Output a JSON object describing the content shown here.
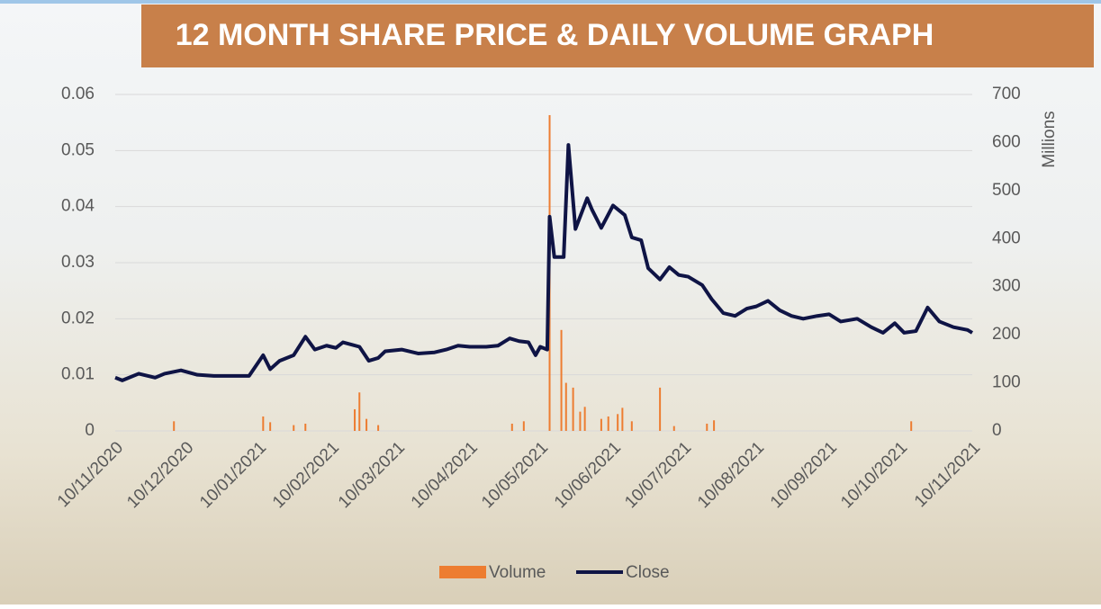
{
  "chart_data": {
    "type": "bar-line",
    "title": "12 MONTH SHARE PRICE & DAILY VOLUME GRAPH",
    "y2label": "Millions",
    "xlim": [
      "10/11/2020",
      "10/11/2021"
    ],
    "xticks": [
      "10/11/2020",
      "10/12/2020",
      "10/01/2021",
      "10/02/2021",
      "10/03/2021",
      "10/04/2021",
      "10/05/2021",
      "10/06/2021",
      "10/07/2021",
      "10/08/2021",
      "10/09/2021",
      "10/10/2021",
      "10/11/2021"
    ],
    "ylim": [
      0,
      0.06
    ],
    "yticks": [
      0,
      0.01,
      0.02,
      0.03,
      0.04,
      0.05,
      0.06
    ],
    "y2lim": [
      0,
      700
    ],
    "y2ticks": [
      0,
      100,
      200,
      300,
      400,
      500,
      600,
      700
    ],
    "grid": true,
    "legend": "bottom",
    "series": [
      {
        "name": "Volume",
        "type": "bar",
        "axis": "y2",
        "color": "#ed7d31",
        "x": [
          "05/12/2020",
          "12/01/2021",
          "15/01/2021",
          "25/01/2021",
          "30/01/2021",
          "20/02/2021",
          "22/02/2021",
          "25/02/2021",
          "02/03/2021",
          "28/04/2021",
          "03/05/2021",
          "14/05/2021",
          "19/05/2021",
          "21/05/2021",
          "24/05/2021",
          "27/05/2021",
          "29/05/2021",
          "05/06/2021",
          "08/06/2021",
          "12/06/2021",
          "14/06/2021",
          "18/06/2021",
          "30/06/2021",
          "06/07/2021",
          "20/07/2021",
          "23/07/2021",
          "15/10/2021"
        ],
        "values": [
          20,
          30,
          18,
          12,
          15,
          45,
          80,
          25,
          12,
          15,
          20,
          657,
          210,
          100,
          90,
          40,
          50,
          25,
          30,
          35,
          48,
          20,
          90,
          10,
          15,
          22,
          20
        ]
      },
      {
        "name": "Close",
        "type": "line",
        "axis": "y",
        "color": "#0f1445",
        "x": [
          "10/11/2020",
          "13/11/2020",
          "20/11/2020",
          "27/11/2020",
          "01/12/2020",
          "08/12/2020",
          "15/12/2020",
          "22/12/2020",
          "30/12/2020",
          "06/01/2021",
          "12/01/2021",
          "15/01/2021",
          "19/01/2021",
          "25/01/2021",
          "30/01/2021",
          "03/02/2021",
          "08/02/2021",
          "12/02/2021",
          "15/02/2021",
          "22/02/2021",
          "26/02/2021",
          "02/03/2021",
          "05/03/2021",
          "12/03/2021",
          "19/03/2021",
          "26/03/2021",
          "31/03/2021",
          "05/04/2021",
          "10/04/2021",
          "17/04/2021",
          "22/04/2021",
          "27/04/2021",
          "01/05/2021",
          "05/05/2021",
          "08/05/2021",
          "10/05/2021",
          "13/05/2021",
          "14/05/2021",
          "16/05/2021",
          "20/05/2021",
          "22/05/2021",
          "25/05/2021",
          "30/05/2021",
          "01/06/2021",
          "05/06/2021",
          "10/06/2021",
          "15/06/2021",
          "18/06/2021",
          "22/06/2021",
          "25/06/2021",
          "30/06/2021",
          "04/07/2021",
          "08/07/2021",
          "12/07/2021",
          "18/07/2021",
          "22/07/2021",
          "27/07/2021",
          "01/08/2021",
          "06/08/2021",
          "10/08/2021",
          "15/08/2021",
          "20/08/2021",
          "25/08/2021",
          "30/08/2021",
          "05/09/2021",
          "10/09/2021",
          "15/09/2021",
          "22/09/2021",
          "28/09/2021",
          "03/10/2021",
          "08/10/2021",
          "12/10/2021",
          "17/10/2021",
          "22/10/2021",
          "27/10/2021",
          "02/11/2021",
          "08/11/2021",
          "10/11/2021"
        ],
        "values": [
          0.0095,
          0.009,
          0.0102,
          0.0095,
          0.0102,
          0.0108,
          0.01,
          0.0098,
          0.0098,
          0.0098,
          0.0135,
          0.011,
          0.0125,
          0.0135,
          0.0168,
          0.0145,
          0.0152,
          0.0148,
          0.0158,
          0.015,
          0.0125,
          0.013,
          0.0142,
          0.0145,
          0.0138,
          0.014,
          0.0145,
          0.0152,
          0.015,
          0.015,
          0.0152,
          0.0165,
          0.016,
          0.0158,
          0.0135,
          0.015,
          0.0145,
          0.0382,
          0.031,
          0.031,
          0.051,
          0.036,
          0.0415,
          0.0395,
          0.0362,
          0.0402,
          0.0385,
          0.0345,
          0.034,
          0.029,
          0.027,
          0.0292,
          0.0278,
          0.0275,
          0.026,
          0.0235,
          0.021,
          0.0205,
          0.0218,
          0.0222,
          0.0232,
          0.0215,
          0.0205,
          0.02,
          0.0205,
          0.0208,
          0.0195,
          0.02,
          0.0185,
          0.0175,
          0.0192,
          0.0175,
          0.0178,
          0.022,
          0.0195,
          0.0185,
          0.018,
          0.0175
        ]
      }
    ]
  }
}
